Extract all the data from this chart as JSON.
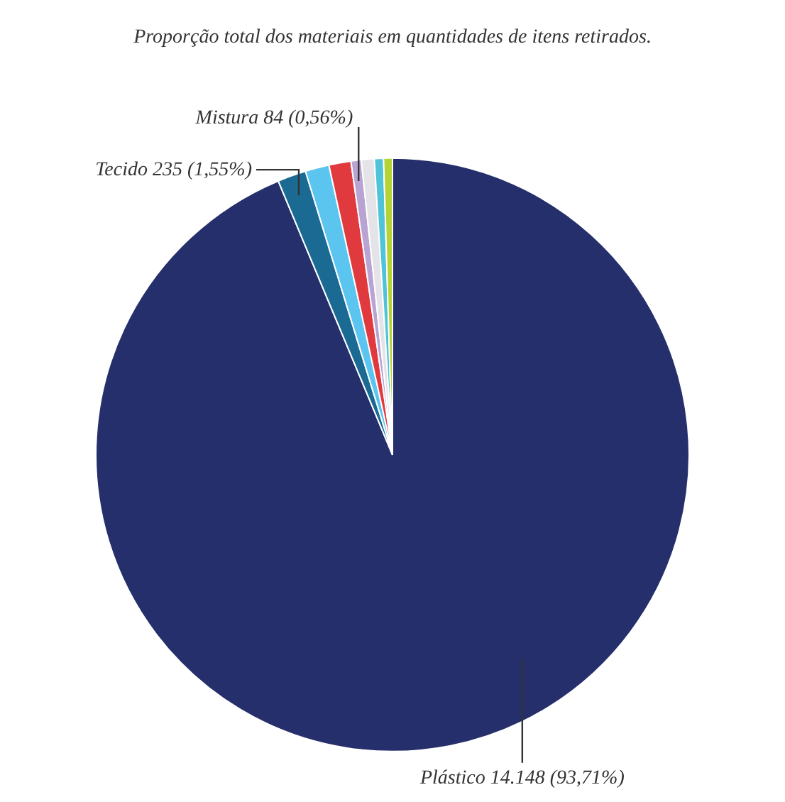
{
  "chart_data": {
    "type": "pie",
    "title": "Proporção total dos materiais em quantidades de itens retirados.",
    "categories": [
      "Plástico",
      "Tecido",
      null,
      null,
      "Mistura",
      null,
      null,
      null
    ],
    "values": [
      93.71,
      1.55,
      1.3,
      1.2,
      0.56,
      0.7,
      0.5,
      0.48
    ],
    "value_labels": [
      "14.148 (93,71%)",
      "235 (1,55%)",
      null,
      null,
      "84 (0,56%)",
      null,
      null,
      null
    ],
    "colors": [
      "#252f6b",
      "#1a6a94",
      "#5bc5ef",
      "#e03a3e",
      "#b9a3d3",
      "#e3e3e8",
      "#4fc3d8",
      "#b5d334"
    ],
    "legend": false
  }
}
